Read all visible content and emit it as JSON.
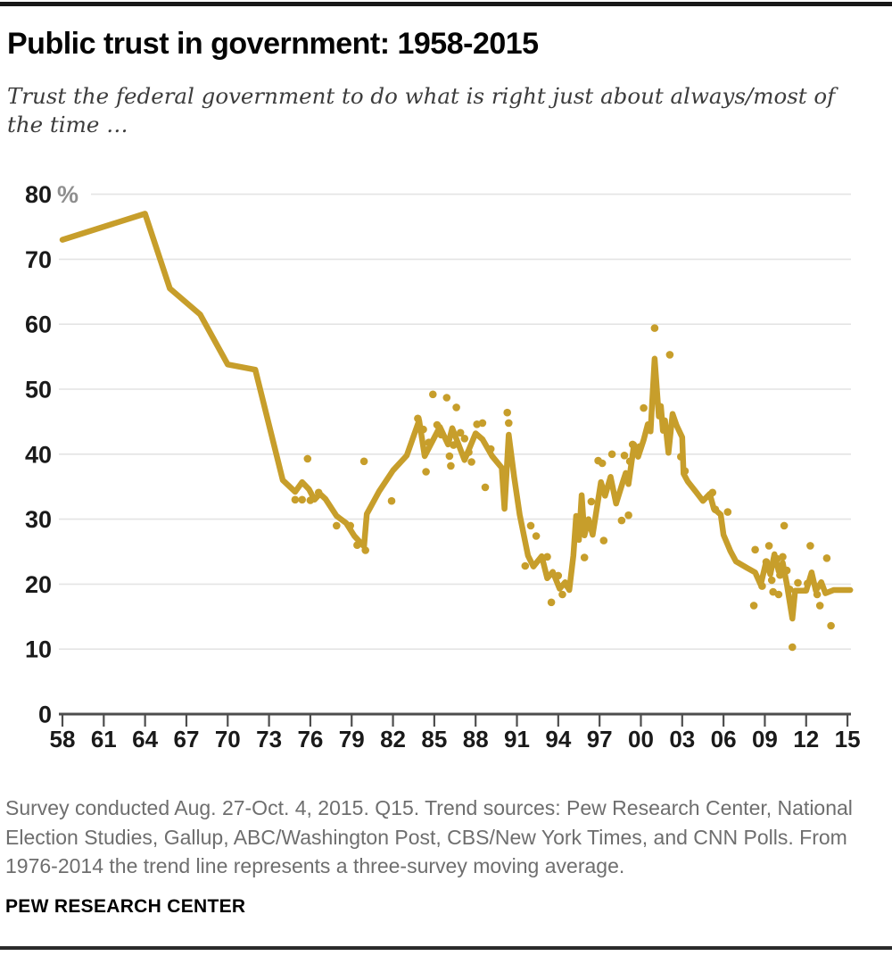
{
  "page": {
    "title": "Public trust in government: 1958-2015",
    "subtitle": "Trust the federal government to do what is right just about always/most of the time …",
    "footnote": "Survey conducted Aug. 27-Oct. 4, 2015. Q15. Trend sources: Pew Research Center, National Election Studies, Gallup, ABC/Washington Post, CBS/New York Times, and CNN Polls. From 1976-2014 the trend line represents a three-survey moving average.",
    "source_label": "PEW RESEARCH CENTER"
  },
  "colors": {
    "accent_gold": "#C79E2B",
    "grid": "#E4E4E4",
    "axis": "#4D4D4D",
    "tick_label": "#1A1A1A",
    "percent_sign": "#8E8E8E"
  },
  "chart_data": {
    "type": "line",
    "title": "Public trust in government: 1958-2015",
    "xlabel": "",
    "ylabel": "%",
    "ylim": [
      0,
      80
    ],
    "y_ticks": [
      0,
      10,
      20,
      30,
      40,
      50,
      60,
      70,
      80
    ],
    "y_unit_label": "%",
    "x_ticks": [
      "58",
      "61",
      "64",
      "67",
      "70",
      "73",
      "76",
      "79",
      "82",
      "85",
      "88",
      "91",
      "94",
      "97",
      "00",
      "03",
      "06",
      "09",
      "12",
      "15"
    ],
    "x_tick_years": [
      1958,
      1961,
      1964,
      1967,
      1970,
      1973,
      1976,
      1979,
      1982,
      1985,
      1988,
      1991,
      1994,
      1997,
      2000,
      2003,
      2006,
      2009,
      2012,
      2015
    ],
    "xlim": [
      1958,
      2015.5
    ],
    "grid": "horizontal",
    "legend_position": "none",
    "series": [
      {
        "name": "Trend line (from 1976-2014 a three-survey moving average)",
        "type": "line",
        "points": [
          [
            1958,
            73
          ],
          [
            1964,
            77
          ],
          [
            1965.8,
            65.5
          ],
          [
            1968,
            61.5
          ],
          [
            1970,
            53.8
          ],
          [
            1972,
            53
          ],
          [
            1974,
            36
          ],
          [
            1974.9,
            34.2
          ],
          [
            1975.4,
            35.7
          ],
          [
            1975.9,
            34.6
          ],
          [
            1976.3,
            33
          ],
          [
            1976.7,
            33.9
          ],
          [
            1977.1,
            33.1
          ],
          [
            1977.9,
            30.5
          ],
          [
            1978.6,
            29.4
          ],
          [
            1979.2,
            27.4
          ],
          [
            1979.9,
            25.8
          ],
          [
            1980.1,
            30.8
          ],
          [
            1981,
            34.3
          ],
          [
            1982,
            37.5
          ],
          [
            1983,
            39.8
          ],
          [
            1983.9,
            45.2
          ],
          [
            1984.3,
            39.7
          ],
          [
            1985.4,
            44.2
          ],
          [
            1986,
            41.5
          ],
          [
            1986.3,
            44
          ],
          [
            1987.2,
            39.1
          ],
          [
            1988,
            43.2
          ],
          [
            1988.5,
            42.3
          ],
          [
            1989.2,
            39.7
          ],
          [
            1989.9,
            37.9
          ],
          [
            1990.1,
            31.6
          ],
          [
            1990.4,
            43
          ],
          [
            1990.8,
            36.5
          ],
          [
            1991.2,
            30.7
          ],
          [
            1991.8,
            24.4
          ],
          [
            1992.2,
            22.7
          ],
          [
            1992.8,
            24.3
          ],
          [
            1993.2,
            20.9
          ],
          [
            1993.6,
            21.9
          ],
          [
            1994.1,
            19.3
          ],
          [
            1994.5,
            20.3
          ],
          [
            1994.8,
            19.1
          ],
          [
            1995.1,
            24.4
          ],
          [
            1995.3,
            30.5
          ],
          [
            1995.5,
            26.8
          ],
          [
            1995.7,
            33.7
          ],
          [
            1995.9,
            27.5
          ],
          [
            1996.2,
            30
          ],
          [
            1996.5,
            27.6
          ],
          [
            1997.1,
            35.7
          ],
          [
            1997.4,
            33.6
          ],
          [
            1997.8,
            36.5
          ],
          [
            1998.2,
            32.4
          ],
          [
            1998.7,
            35.8
          ],
          [
            1998.9,
            37.1
          ],
          [
            1999.1,
            35.4
          ],
          [
            1999.5,
            41.5
          ],
          [
            1999.8,
            39.6
          ],
          [
            2000.2,
            42.2
          ],
          [
            2000.5,
            44.6
          ],
          [
            2000.7,
            43.5
          ],
          [
            2001,
            54.7
          ],
          [
            2001.3,
            45.8
          ],
          [
            2001.45,
            47.4
          ],
          [
            2001.6,
            43.6
          ],
          [
            2001.75,
            45.2
          ],
          [
            2002,
            40.2
          ],
          [
            2002.3,
            46.2
          ],
          [
            2002.6,
            44.4
          ],
          [
            2003,
            42.6
          ],
          [
            2003.1,
            37
          ],
          [
            2003.4,
            35.8
          ],
          [
            2004,
            34.2
          ],
          [
            2004.5,
            32.8
          ],
          [
            2005,
            33.9
          ],
          [
            2005.3,
            31.6
          ],
          [
            2005.8,
            30.7
          ],
          [
            2006,
            27.6
          ],
          [
            2006.5,
            25.1
          ],
          [
            2006.9,
            23.5
          ],
          [
            2007.7,
            22.5
          ],
          [
            2008.3,
            21.8
          ],
          [
            2008.7,
            19.9
          ],
          [
            2009.1,
            23.5
          ],
          [
            2009.4,
            21.5
          ],
          [
            2009.7,
            24.6
          ],
          [
            2010,
            22
          ],
          [
            2010.3,
            23.3
          ],
          [
            2010.6,
            20
          ],
          [
            2011,
            14.7
          ],
          [
            2011.2,
            19
          ],
          [
            2012,
            19
          ],
          [
            2012.4,
            21.8
          ],
          [
            2012.7,
            19
          ],
          [
            2013.1,
            20.3
          ],
          [
            2013.4,
            18.6
          ],
          [
            2014,
            19.1
          ],
          [
            2015.2,
            19.1
          ]
        ]
      },
      {
        "name": "Individual survey readings",
        "type": "scatter",
        "points": [
          [
            1974.9,
            33
          ],
          [
            1975.4,
            33
          ],
          [
            1975.8,
            39.3
          ],
          [
            1976,
            32.9
          ],
          [
            1976.6,
            34.1
          ],
          [
            1977.9,
            29
          ],
          [
            1978.9,
            29
          ],
          [
            1979.4,
            26
          ],
          [
            1979.9,
            38.9
          ],
          [
            1980,
            25.2
          ],
          [
            1981.9,
            32.8
          ],
          [
            1983.8,
            45.5
          ],
          [
            1984.2,
            43.8
          ],
          [
            1984.4,
            37.3
          ],
          [
            1984.6,
            41.8
          ],
          [
            1984.9,
            49.2
          ],
          [
            1985.2,
            44.5
          ],
          [
            1985.5,
            43
          ],
          [
            1985.9,
            48.7
          ],
          [
            1986.1,
            39.7
          ],
          [
            1986.2,
            38.2
          ],
          [
            1986.4,
            41.4
          ],
          [
            1986.6,
            47.2
          ],
          [
            1986.9,
            43.3
          ],
          [
            1987.2,
            42.4
          ],
          [
            1987.5,
            40.3
          ],
          [
            1987.7,
            38.8
          ],
          [
            1988.1,
            44.6
          ],
          [
            1988.5,
            44.8
          ],
          [
            1988.7,
            34.9
          ],
          [
            1989.1,
            40.8
          ],
          [
            1990.3,
            46.4
          ],
          [
            1990.4,
            44.8
          ],
          [
            1991.6,
            22.8
          ],
          [
            1992,
            29
          ],
          [
            1992.4,
            27.4
          ],
          [
            1993.2,
            24.2
          ],
          [
            1993.5,
            17.2
          ],
          [
            1994,
            21.3
          ],
          [
            1994.3,
            18.4
          ],
          [
            1994.7,
            19.7
          ],
          [
            1995.9,
            24.1
          ],
          [
            1996.4,
            32.7
          ],
          [
            1996.9,
            39
          ],
          [
            1997.2,
            38.6
          ],
          [
            1997.3,
            26.7
          ],
          [
            1997.9,
            40
          ],
          [
            1998.6,
            29.8
          ],
          [
            1998.8,
            39.8
          ],
          [
            1999.1,
            30.6
          ],
          [
            1999.2,
            38.9
          ],
          [
            1999.4,
            41.5
          ],
          [
            1999.9,
            41.1
          ],
          [
            2000.2,
            47.1
          ],
          [
            2001,
            59.4
          ],
          [
            2002.1,
            55.3
          ],
          [
            2002.9,
            39.6
          ],
          [
            2003.2,
            37.4
          ],
          [
            2005.2,
            34.1
          ],
          [
            2005.4,
            31.5
          ],
          [
            2006.3,
            31.1
          ],
          [
            2008.2,
            16.7
          ],
          [
            2008.3,
            25.3
          ],
          [
            2008.8,
            19.7
          ],
          [
            2009.1,
            23.4
          ],
          [
            2009.3,
            25.9
          ],
          [
            2009.5,
            20.6
          ],
          [
            2009.6,
            18.8
          ],
          [
            2009.9,
            23.9
          ],
          [
            2010,
            18.4
          ],
          [
            2010.1,
            21.4
          ],
          [
            2010.3,
            24.2
          ],
          [
            2010.4,
            29
          ],
          [
            2010.6,
            22.1
          ],
          [
            2010.8,
            19.2
          ],
          [
            2011,
            10.3
          ],
          [
            2011.4,
            20.2
          ],
          [
            2012.1,
            20.1
          ],
          [
            2012.3,
            25.9
          ],
          [
            2012.8,
            18.4
          ],
          [
            2013,
            16.7
          ],
          [
            2013.5,
            24
          ],
          [
            2013.8,
            13.6
          ]
        ]
      }
    ]
  }
}
